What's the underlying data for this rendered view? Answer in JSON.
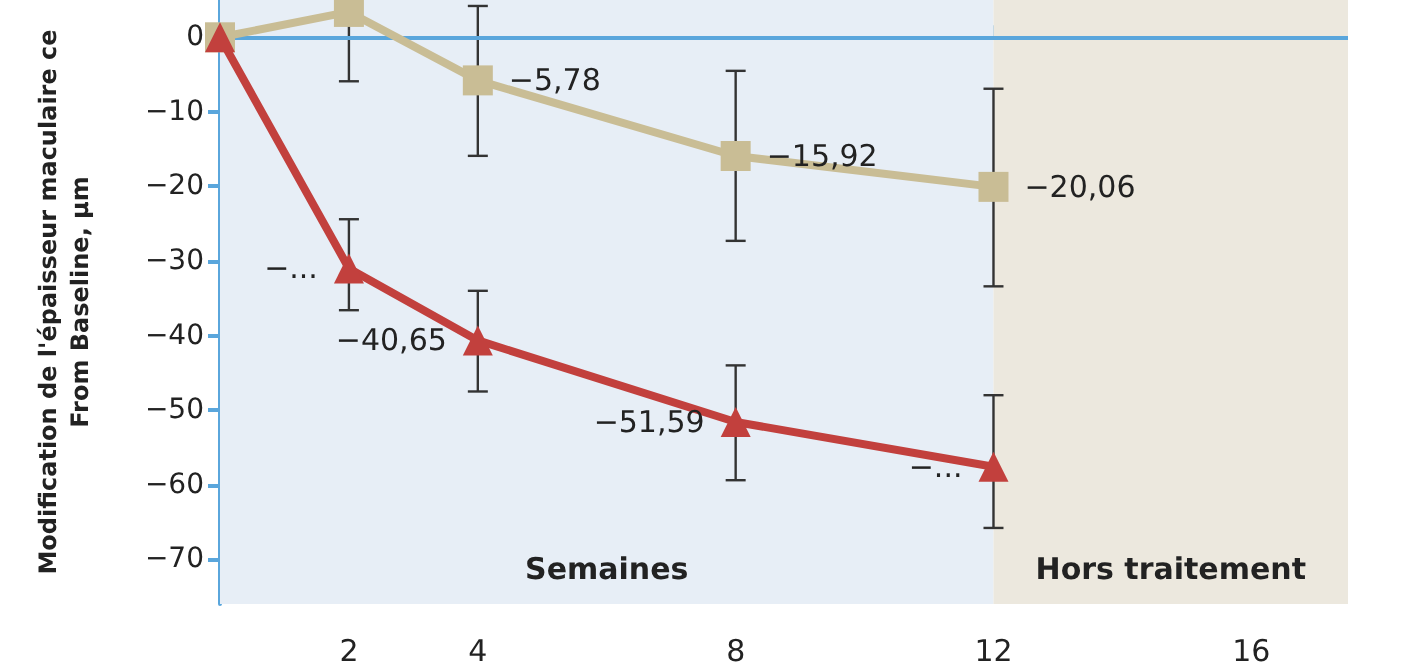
{
  "chart_data": {
    "type": "line",
    "ylabel": "Modification de l'épaisseur maculaire ce\nFrom Baseline, µm",
    "xlim": [
      0,
      17.5
    ],
    "xticks": [
      2,
      4,
      8,
      12,
      16
    ],
    "ylim": [
      -76,
      5
    ],
    "yticks": [
      0,
      -10,
      -20,
      -30,
      -40,
      -50,
      -60,
      -70
    ],
    "line_style": "solid",
    "grid": false,
    "ref_lines": [
      {
        "axis": "y",
        "value": 0,
        "color": "#5aa6dc",
        "line_style": "solid"
      }
    ],
    "series": [
      {
        "color": "#c9bd95",
        "marker": "square",
        "x": [
          0,
          2,
          4,
          8,
          12
        ],
        "values": [
          0,
          3.4,
          -5.78,
          -15.92,
          -20.06
        ],
        "errors": [
          null,
          [
            -5.9,
            5
          ],
          [
            -15.9,
            4.2
          ],
          [
            -27.3,
            -4.5
          ],
          [
            -33.4,
            -6.9
          ]
        ],
        "value_labels": [
          null,
          null,
          "−5,78",
          "−15,92",
          "−20,06"
        ]
      },
      {
        "color": "#c2403d",
        "marker": "triangle",
        "x": [
          0,
          2,
          4,
          8,
          12
        ],
        "values": [
          0,
          -31,
          -40.65,
          -51.59,
          -57.6
        ],
        "errors": [
          null,
          [
            -36.6,
            -24.4
          ],
          [
            -47.5,
            -34
          ],
          [
            -59.4,
            -44
          ],
          [
            -65.8,
            -48
          ]
        ],
        "value_labels": [
          null,
          "−...",
          "−40,65",
          "−51,59",
          "−..."
        ]
      }
    ],
    "bands": [
      {
        "axis": "x",
        "from": 0,
        "to": 12,
        "label": "Semaines",
        "color": "#e7eef6"
      },
      {
        "axis": "x",
        "from": 12,
        "to": 17.5,
        "label": "Hors traitement",
        "color": "#ece8de"
      }
    ]
  }
}
